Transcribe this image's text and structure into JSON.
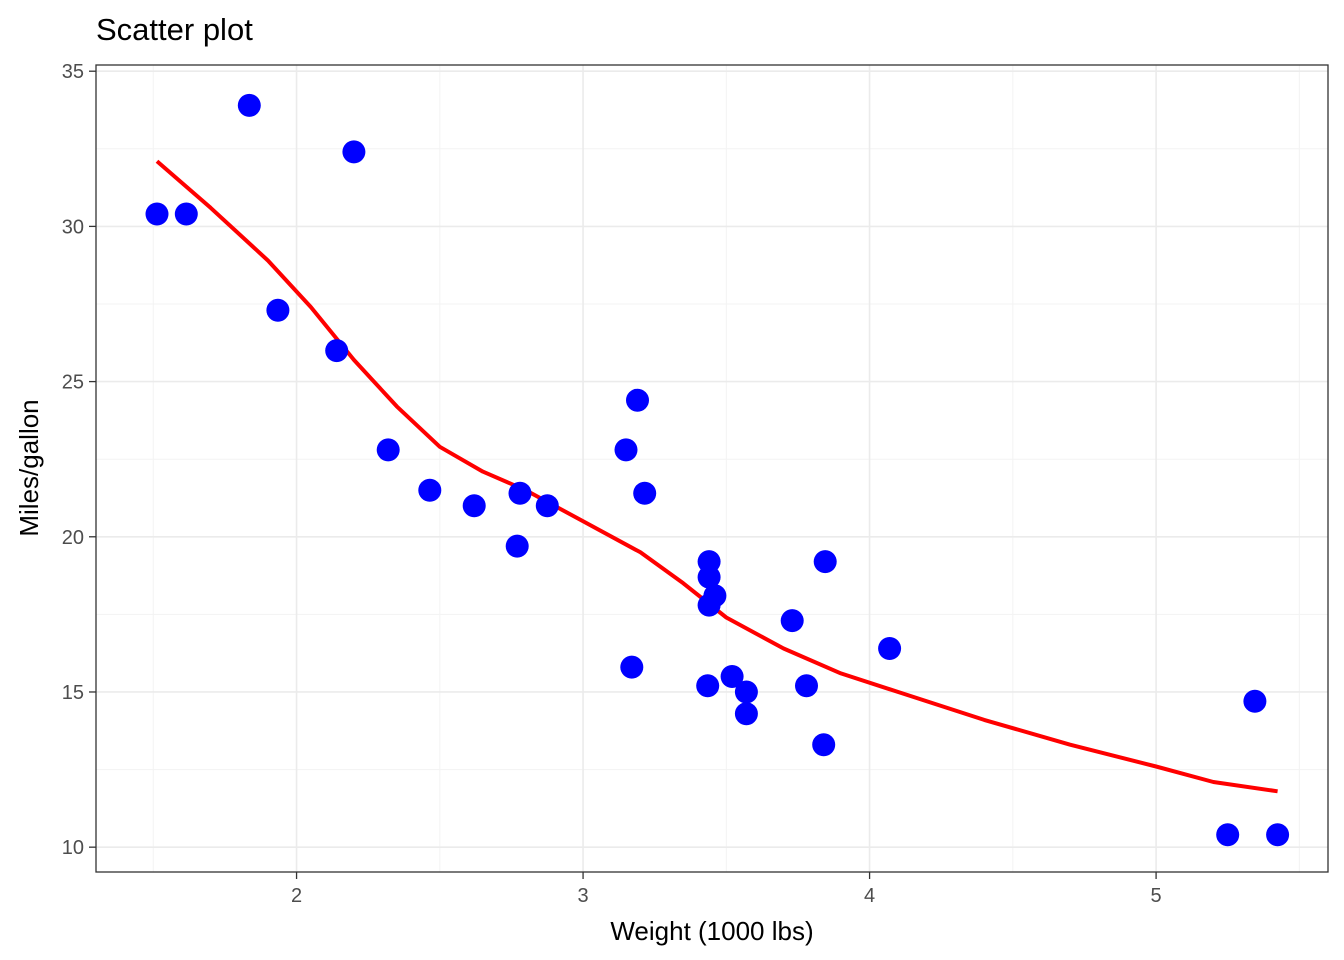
{
  "chart_data": {
    "type": "scatter",
    "title": "Scatter plot",
    "xlabel": "Weight (1000 lbs)",
    "ylabel": "Miles/gallon",
    "xlim": [
      1.3,
      5.6
    ],
    "ylim": [
      9.2,
      35.2
    ],
    "x_ticks": [
      2,
      3,
      4,
      5
    ],
    "y_ticks": [
      10,
      15,
      20,
      25,
      30,
      35
    ],
    "grid": true,
    "point_color": "#0000ff",
    "line_color": "#ff0000",
    "points": [
      {
        "x": 2.62,
        "y": 21.0
      },
      {
        "x": 2.875,
        "y": 21.0
      },
      {
        "x": 2.32,
        "y": 22.8
      },
      {
        "x": 3.215,
        "y": 21.4
      },
      {
        "x": 3.44,
        "y": 18.7
      },
      {
        "x": 3.46,
        "y": 18.1
      },
      {
        "x": 3.57,
        "y": 14.3
      },
      {
        "x": 3.19,
        "y": 24.4
      },
      {
        "x": 3.15,
        "y": 22.8
      },
      {
        "x": 3.44,
        "y": 19.2
      },
      {
        "x": 3.44,
        "y": 17.8
      },
      {
        "x": 4.07,
        "y": 16.4
      },
      {
        "x": 3.73,
        "y": 17.3
      },
      {
        "x": 3.78,
        "y": 15.2
      },
      {
        "x": 5.25,
        "y": 10.4
      },
      {
        "x": 5.424,
        "y": 10.4
      },
      {
        "x": 5.345,
        "y": 14.7
      },
      {
        "x": 2.2,
        "y": 32.4
      },
      {
        "x": 1.615,
        "y": 30.4
      },
      {
        "x": 1.835,
        "y": 33.9
      },
      {
        "x": 2.465,
        "y": 21.5
      },
      {
        "x": 3.52,
        "y": 15.5
      },
      {
        "x": 3.435,
        "y": 15.2
      },
      {
        "x": 3.84,
        "y": 13.3
      },
      {
        "x": 3.845,
        "y": 19.2
      },
      {
        "x": 1.935,
        "y": 27.3
      },
      {
        "x": 2.14,
        "y": 26.0
      },
      {
        "x": 1.513,
        "y": 30.4
      },
      {
        "x": 3.17,
        "y": 15.8
      },
      {
        "x": 2.77,
        "y": 19.7
      },
      {
        "x": 3.57,
        "y": 15.0
      },
      {
        "x": 2.78,
        "y": 21.4
      }
    ],
    "smooth_line": [
      {
        "x": 1.513,
        "y": 32.1
      },
      {
        "x": 1.7,
        "y": 30.6
      },
      {
        "x": 1.9,
        "y": 28.9
      },
      {
        "x": 2.05,
        "y": 27.4
      },
      {
        "x": 2.2,
        "y": 25.7
      },
      {
        "x": 2.35,
        "y": 24.2
      },
      {
        "x": 2.5,
        "y": 22.9
      },
      {
        "x": 2.65,
        "y": 22.1
      },
      {
        "x": 2.8,
        "y": 21.5
      },
      {
        "x": 3.0,
        "y": 20.5
      },
      {
        "x": 3.2,
        "y": 19.5
      },
      {
        "x": 3.35,
        "y": 18.5
      },
      {
        "x": 3.5,
        "y": 17.4
      },
      {
        "x": 3.7,
        "y": 16.4
      },
      {
        "x": 3.9,
        "y": 15.6
      },
      {
        "x": 4.1,
        "y": 15.0
      },
      {
        "x": 4.4,
        "y": 14.1
      },
      {
        "x": 4.7,
        "y": 13.3
      },
      {
        "x": 5.0,
        "y": 12.6
      },
      {
        "x": 5.2,
        "y": 12.1
      },
      {
        "x": 5.424,
        "y": 11.8
      }
    ]
  }
}
